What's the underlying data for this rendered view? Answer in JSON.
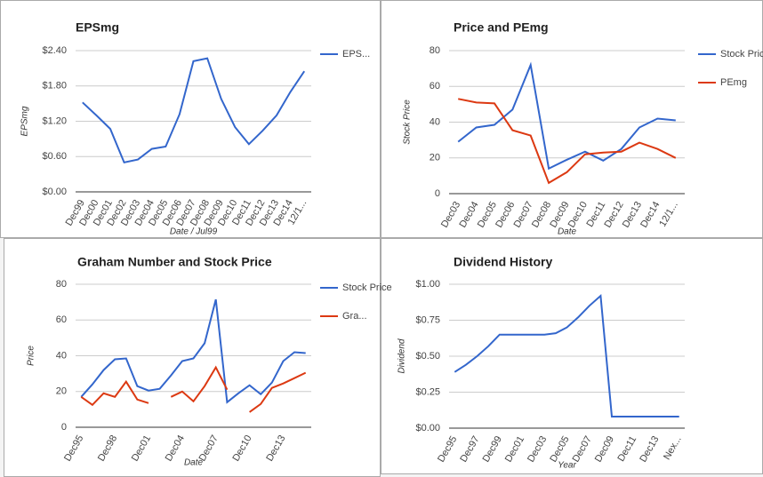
{
  "chart_data": [
    {
      "type": "line",
      "title": "EPSmg",
      "y_label": "EPSmg",
      "x_label": "Date / Jul99",
      "categories": [
        "Dec99",
        "Dec00",
        "Dec01",
        "Dec02",
        "Dec03",
        "Dec04",
        "Dec05",
        "Dec06",
        "Dec07",
        "Dec08",
        "Dec09",
        "Dec10",
        "Dec11",
        "Dec12",
        "Dec13",
        "Dec14",
        "12/1..."
      ],
      "series": [
        {
          "name": "EPS...",
          "color": "#3366cc",
          "values": [
            1.52,
            1.3,
            1.07,
            0.5,
            0.55,
            0.73,
            0.77,
            1.32,
            2.22,
            2.27,
            1.58,
            1.1,
            0.81,
            1.04,
            1.3,
            1.7,
            2.05
          ]
        }
      ],
      "ylim": [
        0,
        2.4
      ],
      "yticks": [
        {
          "value": 0,
          "label": "$0.00"
        },
        {
          "value": 0.6,
          "label": "$0.60"
        },
        {
          "value": 1.2,
          "label": "$1.20"
        },
        {
          "value": 1.8,
          "label": "$1.80"
        },
        {
          "value": 2.4,
          "label": "$2.40"
        }
      ],
      "grid": true
    },
    {
      "type": "line",
      "title": "Price and PEmg",
      "y_label": "Stock Price",
      "x_label": "Date",
      "categories": [
        "Dec03",
        "Dec04",
        "Dec05",
        "Dec06",
        "Dec07",
        "Dec08",
        "Dec09",
        "Dec10",
        "Dec11",
        "Dec12",
        "Dec13",
        "Dec14",
        "12/1..."
      ],
      "series": [
        {
          "name": "Stock Price",
          "color": "#3366cc",
          "values": [
            29,
            37,
            38.5,
            47,
            72,
            14,
            19,
            23.5,
            18.5,
            25,
            37,
            42,
            41
          ]
        },
        {
          "name": "PEmg",
          "color": "#dc3912",
          "values": [
            53,
            51,
            50.5,
            35.5,
            32.5,
            6,
            12,
            22,
            23,
            23.5,
            28.5,
            25,
            20
          ]
        }
      ],
      "ylim": [
        0,
        80
      ],
      "yticks": [
        0,
        20,
        40,
        60,
        80
      ],
      "grid": true
    },
    {
      "type": "line",
      "title": "Graham Number and Stock Price",
      "y_label": "Price",
      "x_label": "Date",
      "categories": [
        "Dec95",
        null,
        null,
        "Dec98",
        null,
        null,
        "Dec01",
        null,
        null,
        "Dec04",
        null,
        null,
        "Dec07",
        null,
        null,
        "Dec10",
        null,
        null,
        "Dec13",
        null,
        null
      ],
      "series": [
        {
          "name": "Stock Price",
          "color": "#3366cc",
          "values": [
            17,
            24,
            32,
            38,
            38.5,
            23,
            20.5,
            21.5,
            29,
            37,
            38.5,
            47,
            71.5,
            14,
            19,
            23.5,
            18.5,
            25,
            37,
            42,
            41.5
          ]
        },
        {
          "name": "Gra...",
          "color": "#dc3912",
          "values": [
            17,
            12.5,
            19,
            17,
            25.5,
            15.5,
            13.5,
            null,
            17,
            20,
            14.5,
            23,
            33.5,
            21,
            null,
            8.5,
            13,
            22,
            24.5,
            27.5,
            30.5
          ]
        }
      ],
      "ylim": [
        0,
        80
      ],
      "yticks": [
        0,
        20,
        40,
        60,
        80
      ],
      "grid": true
    },
    {
      "type": "line",
      "title": "Dividend History",
      "y_label": "Dividend",
      "x_label": "Year",
      "categories": [
        "Dec95",
        null,
        "Dec97",
        null,
        "Dec99",
        null,
        "Dec01",
        null,
        "Dec03",
        null,
        "Dec05",
        null,
        "Dec07",
        null,
        "Dec09",
        null,
        "Dec11",
        null,
        "Dec13",
        null,
        "Nex..."
      ],
      "series": [
        {
          "color": "#3366cc",
          "values": [
            0.39,
            0.44,
            0.5,
            0.57,
            0.65,
            0.65,
            0.65,
            0.65,
            0.65,
            0.66,
            0.7,
            0.77,
            0.85,
            0.92,
            0.08,
            0.08,
            0.08,
            0.08,
            0.08,
            0.08,
            0.08
          ]
        }
      ],
      "ylim": [
        0,
        1
      ],
      "yticks": [
        {
          "value": 0,
          "label": "$0.00"
        },
        {
          "value": 0.25,
          "label": "$0.25"
        },
        {
          "value": 0.5,
          "label": "$0.50"
        },
        {
          "value": 0.75,
          "label": "$0.75"
        },
        {
          "value": 1,
          "label": "$1.00"
        }
      ],
      "grid": true
    }
  ]
}
